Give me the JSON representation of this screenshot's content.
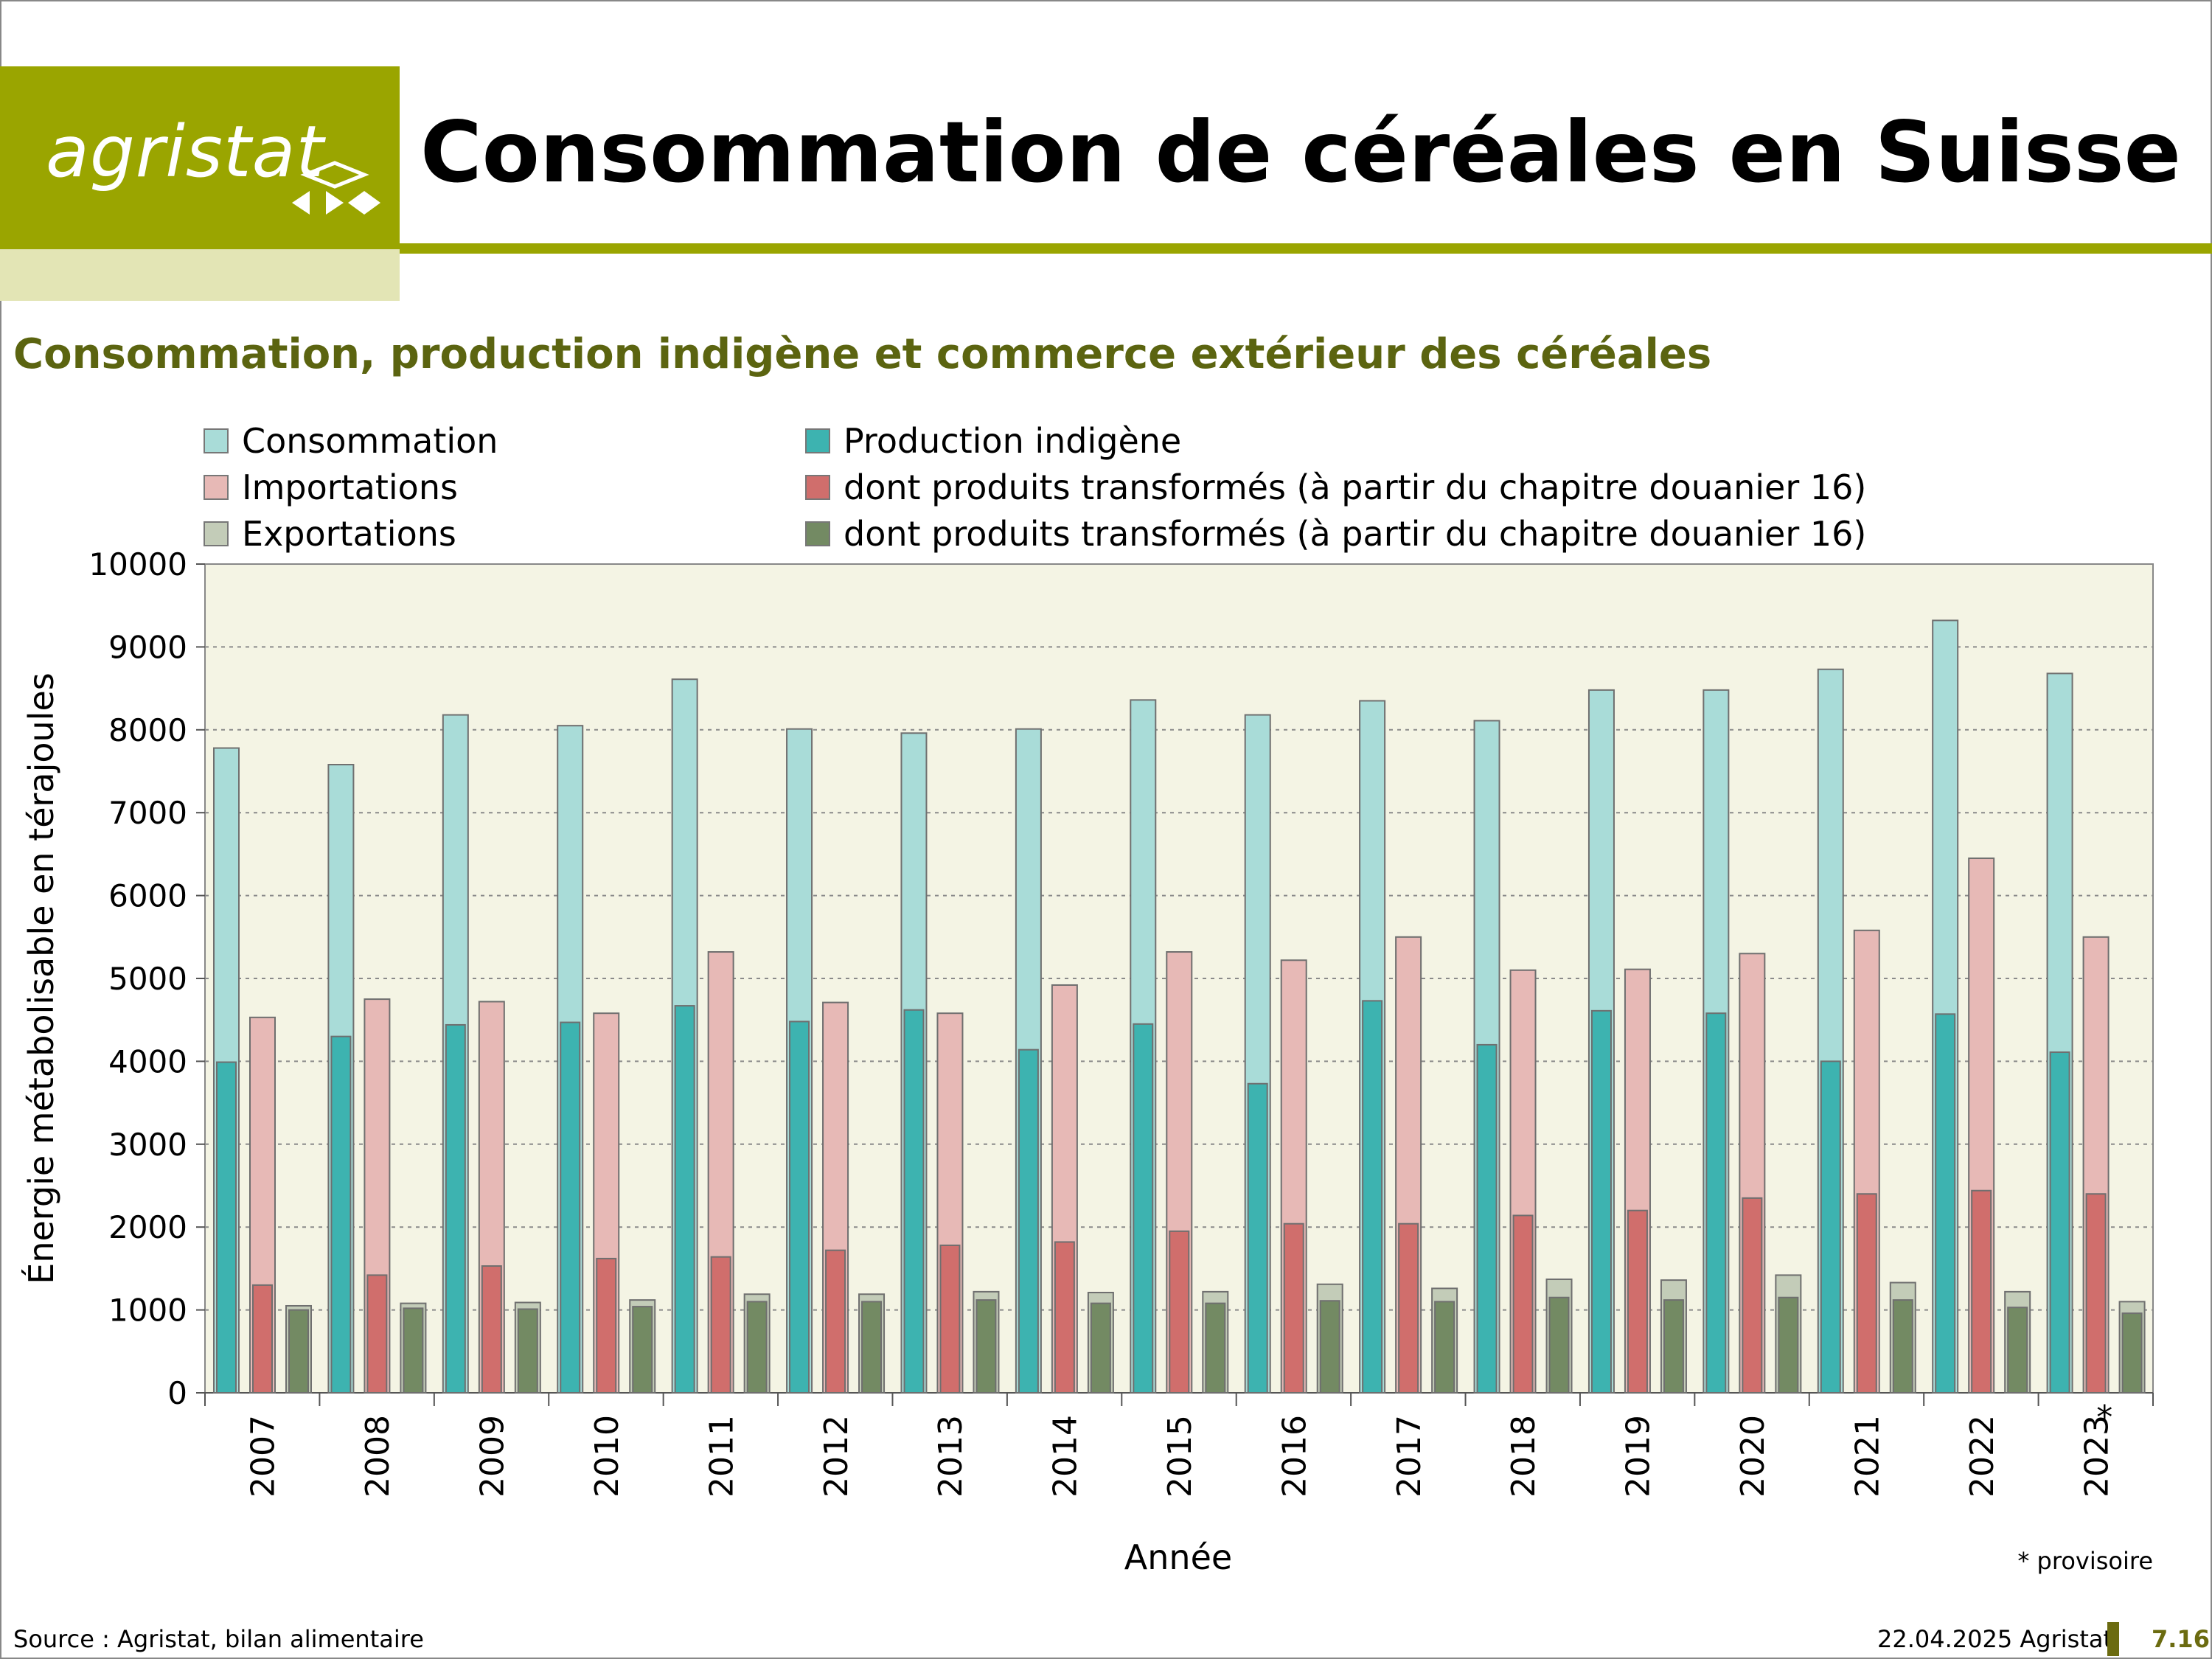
{
  "header": {
    "logo_text": "agristat",
    "title": "Consommation de céréales en Suisse",
    "accent_color": "#9aa500"
  },
  "chart_data": {
    "type": "bar",
    "title": "Consommation, production indigène et commerce extérieur des céréales",
    "xlabel": "Année",
    "ylabel": "Énergie métabolisable en térajoules",
    "ylim": [
      0,
      10000
    ],
    "yticks": [
      "0",
      "1000",
      "2000",
      "3000",
      "4000",
      "5000",
      "6000",
      "7000",
      "8000",
      "9000",
      "10000"
    ],
    "grid": "horizontal dotted",
    "categories": [
      "2007",
      "2008",
      "2009",
      "2010",
      "2011",
      "2012",
      "2013",
      "2014",
      "2015",
      "2016",
      "2017",
      "2018",
      "2019",
      "2020",
      "2021",
      "2022",
      "2023"
    ],
    "provisional_marker": "*",
    "provisional_note": "* provisoire",
    "series": [
      {
        "name": "Consommation",
        "color": "#a9dcd8",
        "values": [
          7780,
          7580,
          8180,
          8050,
          8610,
          8010,
          7960,
          8010,
          8360,
          8180,
          8350,
          8110,
          8480,
          8480,
          8730,
          9320,
          8680
        ]
      },
      {
        "name": "Production indigène",
        "color": "#3db3b0",
        "values": [
          3990,
          4300,
          4440,
          4470,
          4670,
          4480,
          4620,
          4140,
          4450,
          3730,
          4730,
          4200,
          4610,
          4580,
          4000,
          4570,
          4110
        ]
      },
      {
        "name": "Importations",
        "color": "#e7b9b6",
        "values": [
          4530,
          4750,
          4720,
          4580,
          5320,
          4710,
          4580,
          4920,
          5320,
          5220,
          5500,
          5100,
          5110,
          5300,
          5580,
          6450,
          5500
        ]
      },
      {
        "name": "dont produits transformés (à partir du chapitre douanier 16)",
        "color": "#d06e6c",
        "values": [
          1300,
          1420,
          1530,
          1620,
          1640,
          1720,
          1780,
          1820,
          1950,
          2040,
          2040,
          2140,
          2200,
          2350,
          2400,
          2440,
          2400
        ]
      },
      {
        "name": "Exportations",
        "color": "#c3ccb8",
        "values": [
          1050,
          1080,
          1090,
          1120,
          1190,
          1190,
          1220,
          1210,
          1220,
          1310,
          1260,
          1370,
          1360,
          1420,
          1330,
          1220,
          1100
        ]
      },
      {
        "name": "dont produits transformés (à partir du chapitre douanier 16)",
        "color": "#738a63",
        "values": [
          1000,
          1020,
          1010,
          1040,
          1100,
          1100,
          1120,
          1080,
          1080,
          1110,
          1100,
          1150,
          1120,
          1150,
          1120,
          1030,
          960
        ]
      }
    ],
    "legend": [
      {
        "label": "Consommation",
        "color": "#a9dcd8"
      },
      {
        "label": "Importations",
        "color": "#e7b9b6"
      },
      {
        "label": "Exportations",
        "color": "#c3ccb8"
      },
      {
        "label": "Production indigène",
        "color": "#3db3b0"
      },
      {
        "label": "dont produits transformés (à partir du chapitre douanier 16)",
        "color": "#d06e6c"
      },
      {
        "label": "dont produits transformés (à partir du chapitre douanier 16)",
        "color": "#738a63"
      }
    ],
    "plot_background": "#f4f4e4"
  },
  "footer": {
    "source": "Source : Agristat, bilan alimentaire",
    "date": "22.04.2025 Agristat",
    "page": "7.16"
  }
}
